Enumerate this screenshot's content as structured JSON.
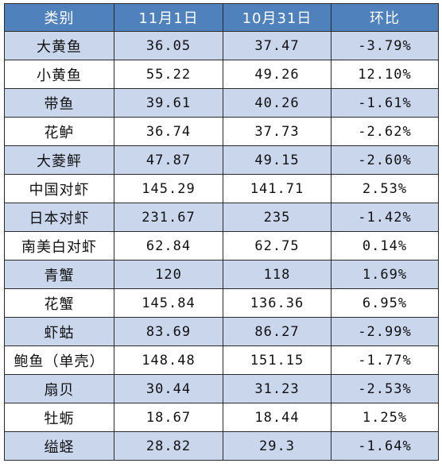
{
  "table": {
    "headers": [
      "类别",
      "11月1日",
      "10月31日",
      "环比"
    ],
    "rows": [
      {
        "name": "大黄鱼",
        "nov1": "36.05",
        "oct31": "37.47",
        "change": "-3.79%"
      },
      {
        "name": "小黄鱼",
        "nov1": "55.22",
        "oct31": "49.26",
        "change": "12.10%"
      },
      {
        "name": "带鱼",
        "nov1": "39.61",
        "oct31": "40.26",
        "change": "-1.61%"
      },
      {
        "name": "花鲈",
        "nov1": "36.74",
        "oct31": "37.73",
        "change": "-2.62%"
      },
      {
        "name": "大菱鲆",
        "nov1": "47.87",
        "oct31": "49.15",
        "change": "-2.60%"
      },
      {
        "name": "中国对虾",
        "nov1": "145.29",
        "oct31": "141.71",
        "change": "2.53%"
      },
      {
        "name": "日本对虾",
        "nov1": "231.67",
        "oct31": "235",
        "change": "-1.42%"
      },
      {
        "name": "南美白对虾",
        "nov1": "62.84",
        "oct31": "62.75",
        "change": "0.14%"
      },
      {
        "name": "青蟹",
        "nov1": "120",
        "oct31": "118",
        "change": "1.69%"
      },
      {
        "name": "花蟹",
        "nov1": "145.84",
        "oct31": "136.36",
        "change": "6.95%"
      },
      {
        "name": "虾蛄",
        "nov1": "83.69",
        "oct31": "86.27",
        "change": "-2.99%"
      },
      {
        "name": "鲍鱼（单壳）",
        "nov1": "148.48",
        "oct31": "151.15",
        "change": "-1.77%"
      },
      {
        "name": "扇贝",
        "nov1": "30.44",
        "oct31": "31.23",
        "change": "-2.53%"
      },
      {
        "name": "牡蛎",
        "nov1": "18.67",
        "oct31": "18.44",
        "change": "1.25%"
      },
      {
        "name": "缢蛏",
        "nov1": "28.82",
        "oct31": "29.3",
        "change": "-1.64%"
      }
    ]
  },
  "colors": {
    "header_bg": "#4f81bd",
    "header_text": "#ffffff",
    "band_row": "#c9d6ec",
    "plain_row": "#ffffff",
    "border": "#2a2a2a"
  }
}
